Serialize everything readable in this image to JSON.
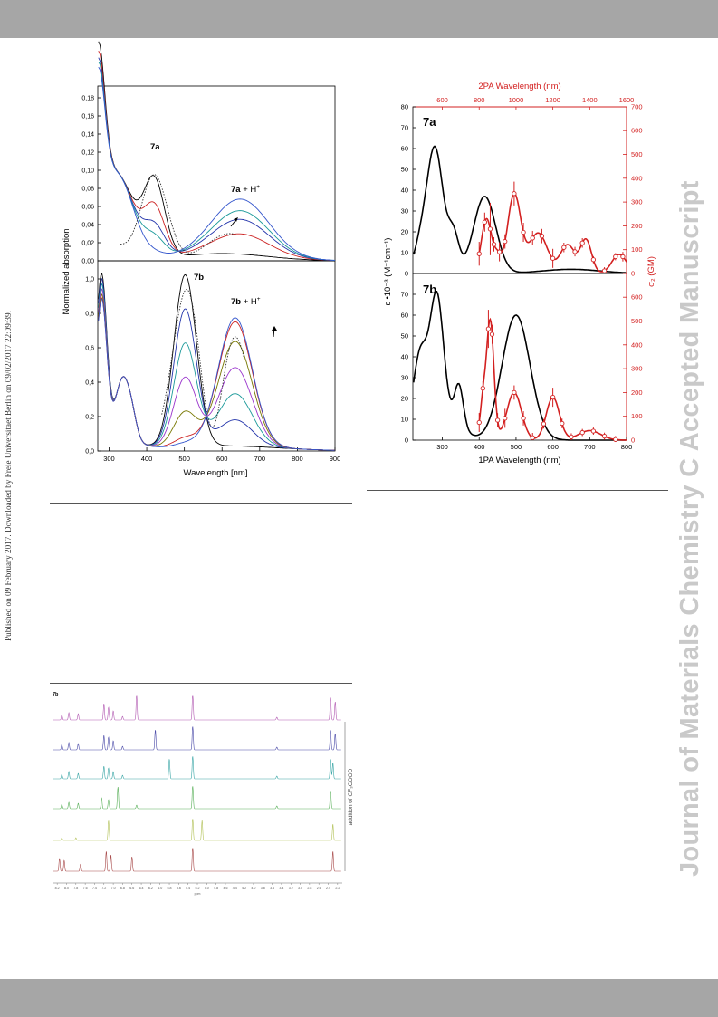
{
  "side_note": "Published on 09 February 2017. Downloaded by Freie Universitaet Berlin on 09/02/2017 22:09:39.",
  "watermark": "Journal of Materials Chemistry C Accepted Manuscript",
  "figure_absorption": {
    "y_label": "Normalized absorption",
    "x_label": "Wavelength [nm]",
    "x_ticks": [
      "300",
      "400",
      "500",
      "600",
      "700",
      "800",
      "900"
    ],
    "top_y_ticks": [
      "0,00",
      "0,02",
      "0,04",
      "0,06",
      "0,08",
      "0,10",
      "0,12",
      "0,14",
      "0,16",
      "0,18"
    ],
    "bottom_y_ticks": [
      "0,0",
      "0,2",
      "0,4",
      "0,6",
      "0,8",
      "1,0"
    ],
    "top_label": "7a",
    "top_prot_bold": "7a",
    "top_prot_rest": " + H",
    "top_prot_sup": "+",
    "bottom_label": "7b",
    "bottom_prot_bold": "7b",
    "bottom_prot_rest": " + H",
    "bottom_prot_sup": "+",
    "colors": [
      "#000000",
      "#cc2222",
      "#2233aa",
      "#1a9999",
      "#9933cc",
      "#777700",
      "#3355cc"
    ]
  },
  "figure_2pa": {
    "top_axis_title": "2PA Wavelength (nm)",
    "top_x_ticks": [
      "600",
      "800",
      "1000",
      "1200",
      "1400",
      "1600"
    ],
    "bottom_x_label": "1PA Wavelength (nm)",
    "bottom_x_ticks": [
      "300",
      "400",
      "500",
      "600",
      "700",
      "800"
    ],
    "left_y_label": "ε •10⁻³ (M⁻¹cm⁻¹)",
    "right_y_label": "σ₂ (GM)",
    "top_left_ticks": [
      "0",
      "10",
      "20",
      "30",
      "40",
      "50",
      "60",
      "70",
      "80"
    ],
    "top_right_ticks": [
      "0",
      "100",
      "200",
      "300",
      "400",
      "500",
      "600",
      "700"
    ],
    "bottom_left_ticks": [
      "0",
      "10",
      "20",
      "30",
      "40",
      "50",
      "60",
      "70"
    ],
    "bottom_right_ticks": [
      "0",
      "100",
      "200",
      "300",
      "400",
      "500",
      "600"
    ],
    "panel_a_label": "7a",
    "panel_b_label": "7b",
    "line_color": "#000000",
    "data_color": "#d32020"
  },
  "figure_nmr": {
    "label": "7b",
    "side_label": "addition of CF₃COOD",
    "x_label": "ppm",
    "x_ticks": [
      "8.2",
      "8.0",
      "7.8",
      "7.6",
      "7.4",
      "7.2",
      "7.0",
      "6.8",
      "6.6",
      "6.4",
      "6.2",
      "6.0",
      "5.8",
      "5.6",
      "5.4",
      "5.2",
      "5.0",
      "4.8",
      "4.6",
      "4.4",
      "4.2",
      "4.0",
      "3.8",
      "3.6",
      "3.4",
      "3.2",
      "3.0",
      "2.8",
      "2.6",
      "2.4",
      "2.2"
    ],
    "trace_colors": [
      "#b25ab2",
      "#4a4aa8",
      "#3aa6a6",
      "#5ab05a",
      "#b3c25a",
      "#a84a4a"
    ]
  }
}
